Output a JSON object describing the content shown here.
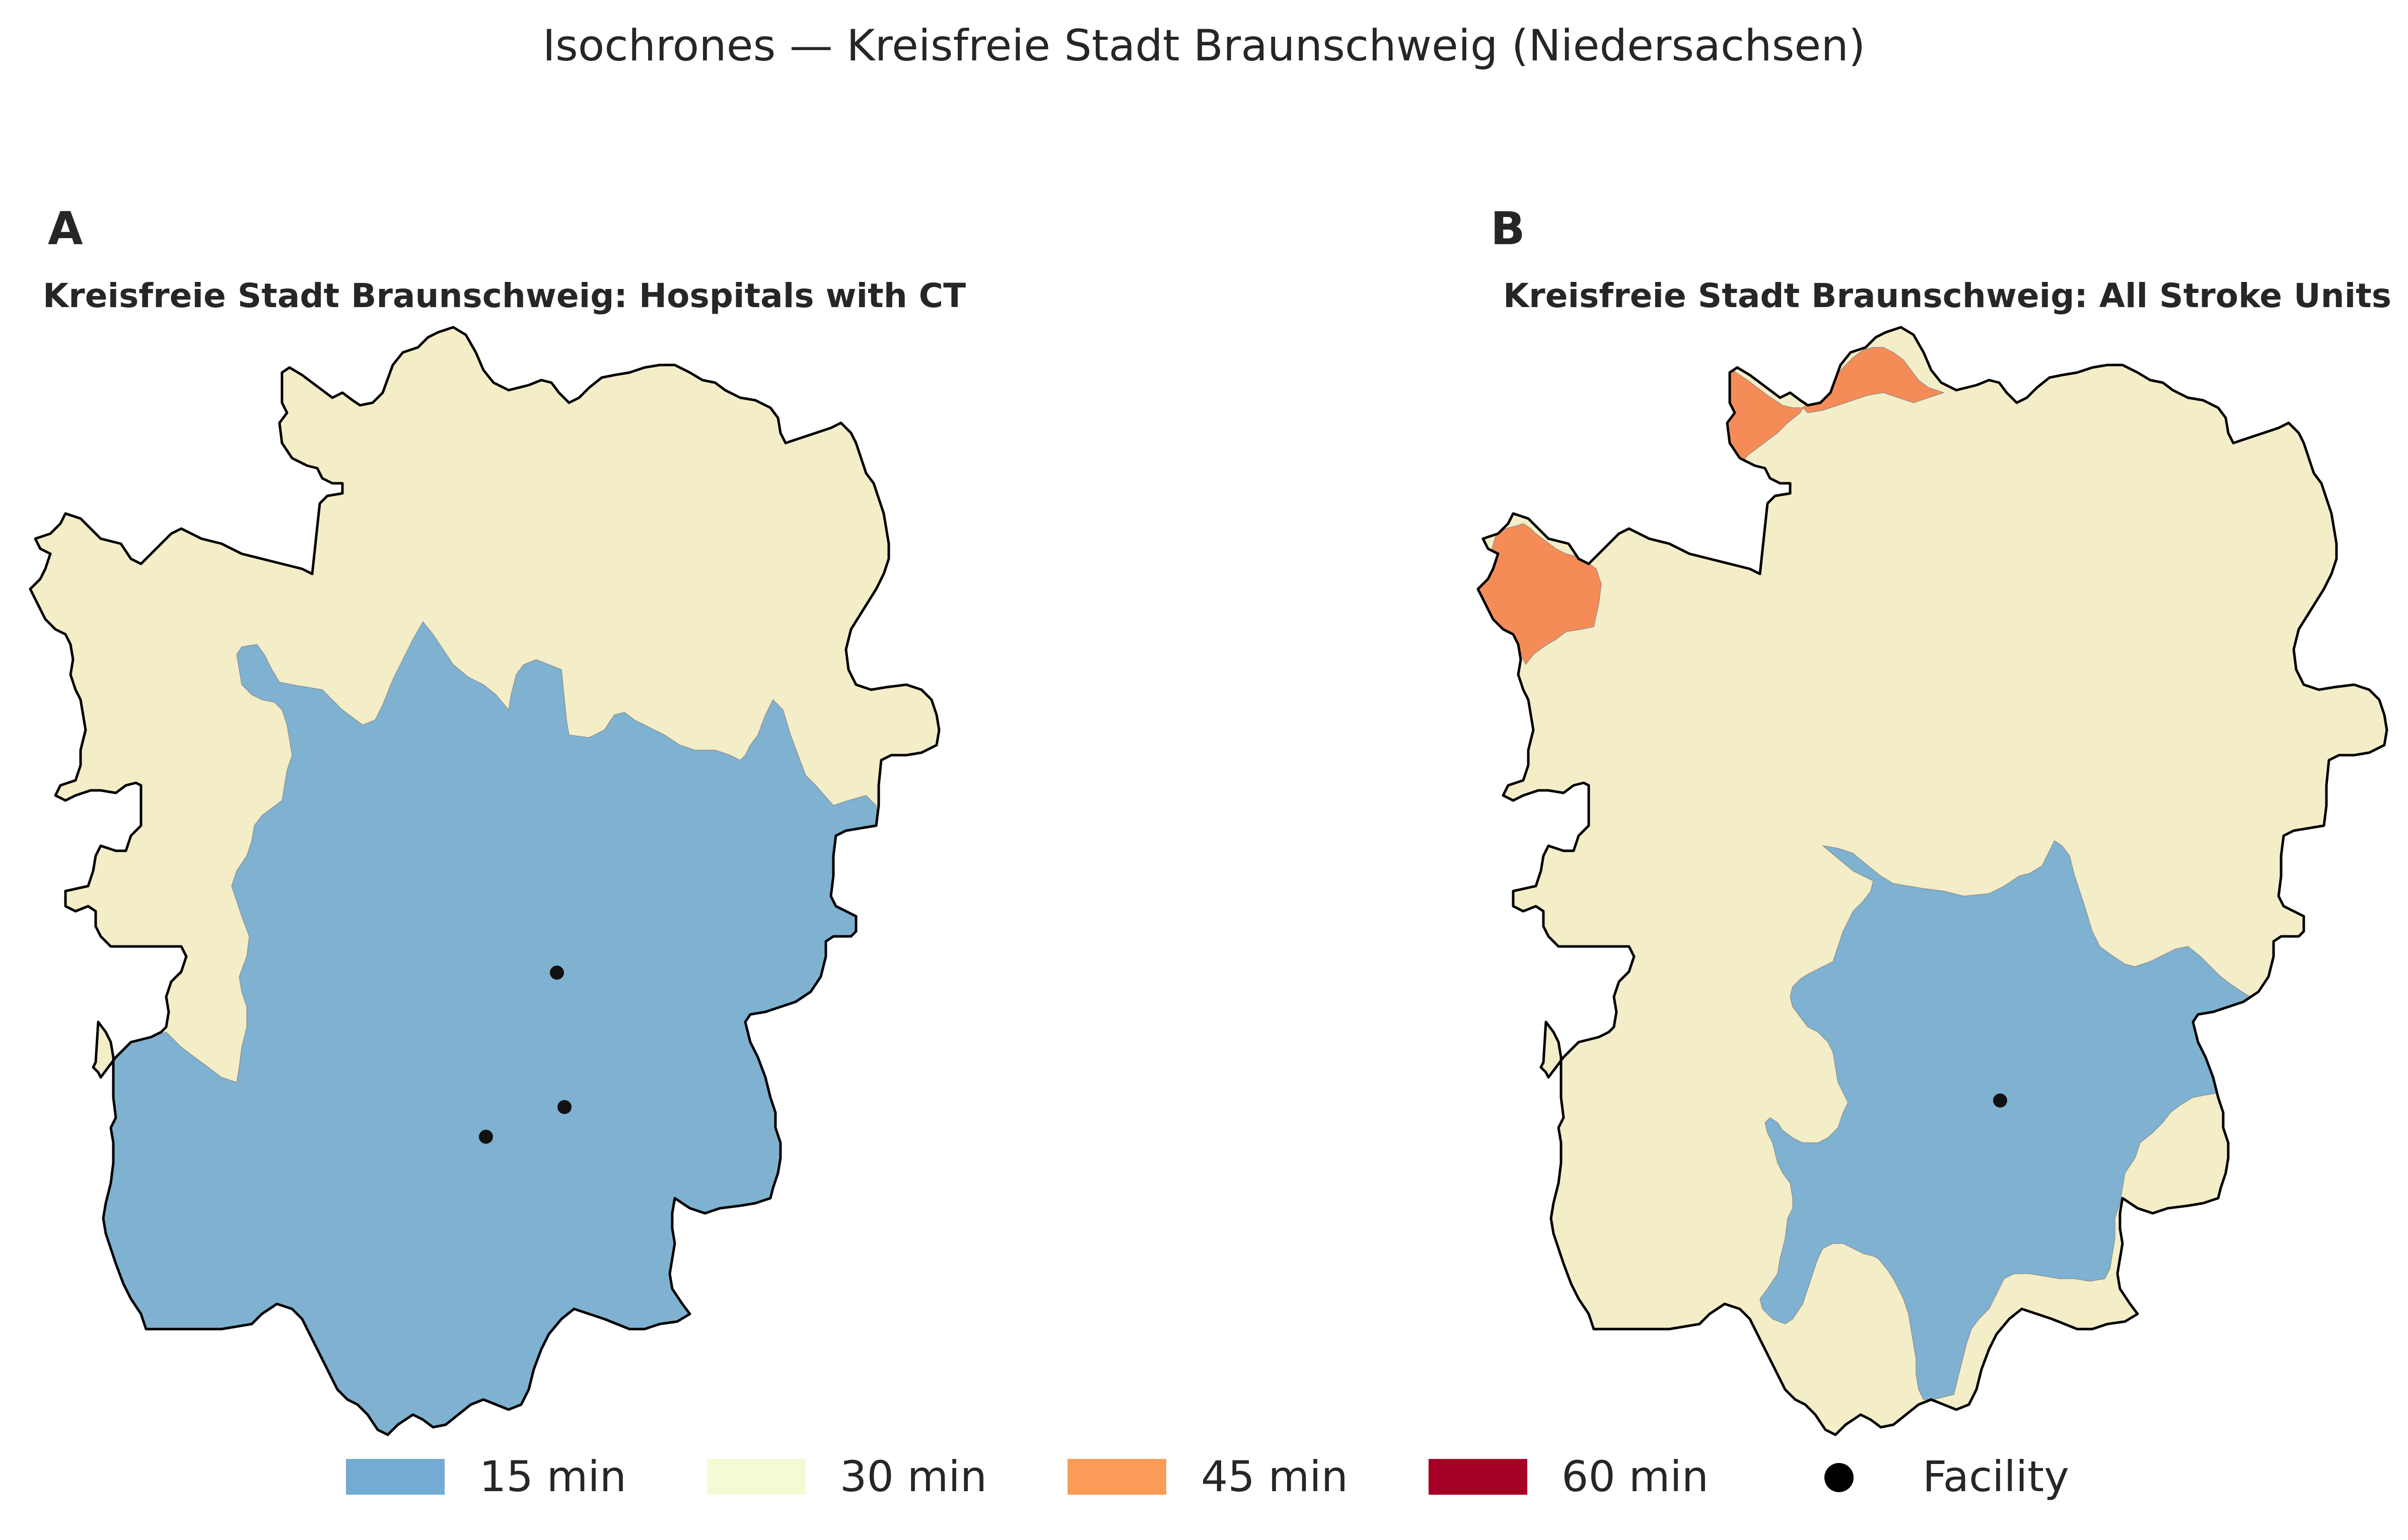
{
  "title": "Isochrones — Kreisfreie Stadt Braunschweig (Niedersachsen)",
  "colors": {
    "15 min": "#7fb1d0",
    "30 min": "#f3edc8",
    "45 min": "#f58c58",
    "60 min": "#a50026",
    "boundary": "#000000",
    "facility": "#111111"
  },
  "panels": [
    {
      "letter": "A",
      "subtitle": "Kreisfreie Stadt Braunschweig: Hospitals with CT",
      "facility_count": 3
    },
    {
      "letter": "B",
      "subtitle": "Kreisfreie Stadt Braunschweig: All Stroke Units",
      "facility_count": 1
    }
  ],
  "legend": {
    "items": [
      {
        "label": "15 min",
        "color": "#74abd2",
        "kind": "patch"
      },
      {
        "label": "30 min",
        "color": "#f6fad2",
        "kind": "patch"
      },
      {
        "label": "45 min",
        "color": "#fb9b58",
        "kind": "patch"
      },
      {
        "label": "60 min",
        "color": "#a50026",
        "kind": "patch"
      },
      {
        "label": "Facility",
        "color": "#000000",
        "kind": "marker"
      }
    ]
  }
}
